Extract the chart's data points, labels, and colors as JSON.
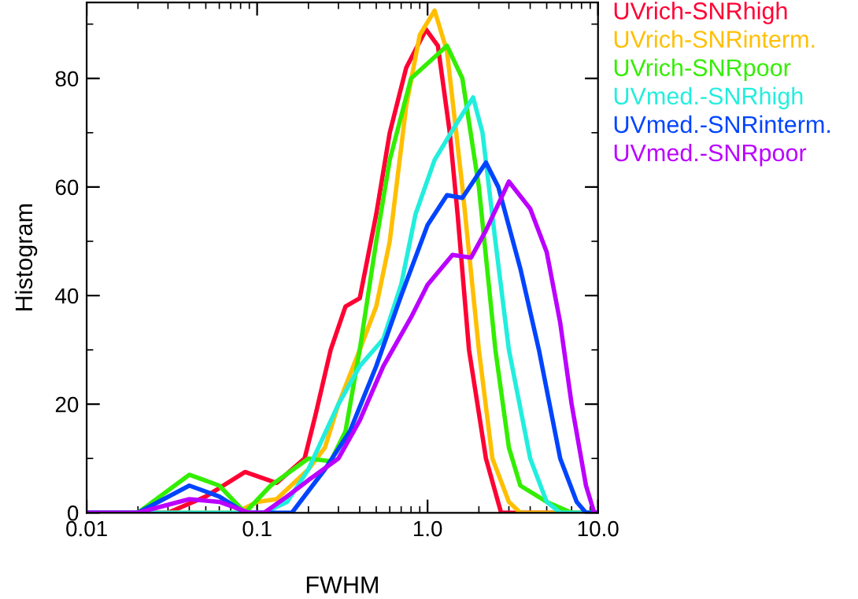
{
  "chart_data": {
    "type": "line",
    "xlabel": "FWHM",
    "ylabel": "Histogram",
    "log": "x",
    "xlim": [
      0.01,
      10
    ],
    "ylim": [
      0,
      94
    ],
    "xticks": [
      0.01,
      0.1,
      {
        "value": 1,
        "label": "1.0"
      },
      {
        "value": 10,
        "label": "10.0"
      }
    ],
    "yticks": [
      0,
      20,
      40,
      60,
      80
    ],
    "grid": false,
    "legend": "top right",
    "marker": "none",
    "line_style": "solid",
    "series": [
      {
        "name": "UVrich-SNRhigh",
        "color": "#ff0033",
        "x": [
          0.01,
          0.03,
          0.05,
          0.085,
          0.13,
          0.19,
          0.22,
          0.27,
          0.33,
          0.4,
          0.5,
          0.6,
          0.75,
          0.98,
          1.15,
          1.35,
          1.5,
          1.75,
          2.2,
          2.7,
          10
        ],
        "values": [
          0,
          0,
          3,
          7.5,
          5.5,
          10,
          18,
          30,
          38,
          39.5,
          55,
          70,
          82,
          89,
          86,
          70,
          55,
          30,
          10,
          0,
          0
        ]
      },
      {
        "name": "UVrich-SNRinterm.",
        "color": "#ffbf00",
        "x": [
          0.01,
          0.075,
          0.1,
          0.13,
          0.2,
          0.25,
          0.3,
          0.4,
          0.5,
          0.6,
          0.75,
          0.9,
          1.1,
          1.3,
          1.6,
          2.0,
          2.4,
          3.0,
          3.5,
          10
        ],
        "values": [
          0,
          0,
          2,
          2.5,
          8,
          12,
          20,
          30,
          38,
          50,
          75,
          88,
          92.5,
          85,
          60,
          30,
          10,
          2,
          0,
          0
        ]
      },
      {
        "name": "UVrich-SNRpoor",
        "color": "#33ee00",
        "x": [
          0.01,
          0.02,
          0.04,
          0.06,
          0.085,
          0.12,
          0.2,
          0.27,
          0.33,
          0.4,
          0.5,
          0.6,
          0.8,
          1.3,
          1.6,
          2.0,
          2.5,
          3.0,
          3.5,
          5,
          7,
          10
        ],
        "values": [
          0,
          0,
          7,
          5,
          0,
          5,
          10,
          9.5,
          15,
          30,
          50,
          65,
          80,
          86,
          80,
          60,
          30,
          12,
          5,
          2,
          0,
          0
        ]
      },
      {
        "name": "UVmed.-SNRhigh",
        "color": "#22eedd",
        "x": [
          0.01,
          0.11,
          0.15,
          0.2,
          0.3,
          0.4,
          0.55,
          0.7,
          0.85,
          1.1,
          1.5,
          1.85,
          2.1,
          2.5,
          3,
          4,
          5,
          6,
          10
        ],
        "values": [
          0,
          0,
          2,
          8,
          20,
          27,
          32,
          42,
          55,
          65,
          72,
          76.5,
          70,
          50,
          30,
          10,
          2,
          0,
          0
        ]
      },
      {
        "name": "UVmed.-SNRinterm.",
        "color": "#0044ff",
        "x": [
          0.01,
          0.02,
          0.04,
          0.06,
          0.085,
          0.16,
          0.25,
          0.35,
          0.5,
          0.7,
          1.0,
          1.3,
          1.6,
          2.2,
          2.6,
          3.5,
          4.5,
          6,
          7.5,
          8.5,
          10
        ],
        "values": [
          0,
          0,
          5,
          3,
          0,
          0,
          8,
          15,
          27,
          40,
          53,
          58.5,
          58,
          64.5,
          60,
          45,
          30,
          10,
          2,
          0,
          0
        ]
      },
      {
        "name": "UVmed.-SNRpoor",
        "color": "#bb00ff",
        "x": [
          0.01,
          0.02,
          0.04,
          0.06,
          0.09,
          0.11,
          0.15,
          0.2,
          0.3,
          0.4,
          0.55,
          0.8,
          1.0,
          1.4,
          1.8,
          2.2,
          3.0,
          4,
          5,
          6,
          7,
          8.5,
          9.5,
          10
        ],
        "values": [
          0,
          0,
          2.5,
          2,
          0,
          0,
          3,
          6,
          10,
          17,
          27,
          36,
          42,
          47.5,
          47,
          52,
          61,
          56,
          48,
          35,
          20,
          5,
          0,
          0
        ]
      }
    ]
  }
}
